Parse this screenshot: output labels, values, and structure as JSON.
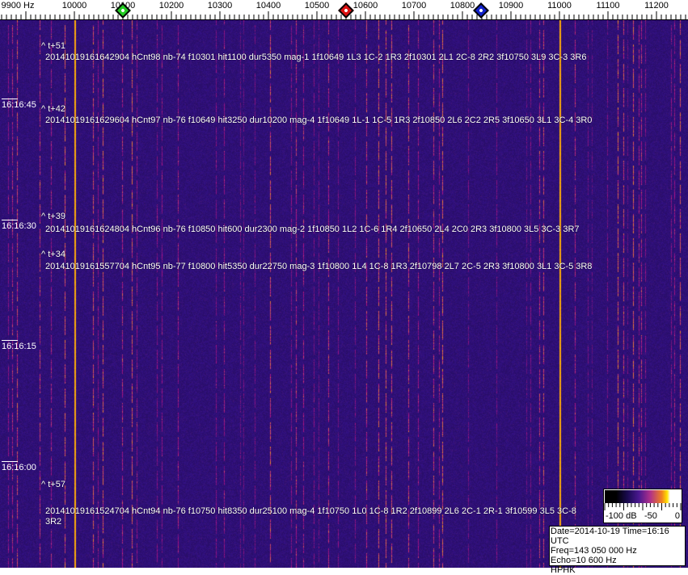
{
  "frequency_axis": {
    "unit": "Hz",
    "labels": [
      "9900 Hz",
      "10000",
      "10100",
      "10200",
      "10300",
      "10400",
      "10500",
      "10600",
      "10700",
      "10800",
      "10900",
      "11000",
      "11100",
      "11200"
    ],
    "values": [
      9900,
      10000,
      10100,
      10200,
      10300,
      10400,
      10500,
      10600,
      10700,
      10800,
      10900,
      11000,
      11100,
      11200
    ],
    "markers": [
      {
        "name": "green-marker",
        "freq": 10100,
        "color": "#22cc22"
      },
      {
        "name": "red-marker",
        "freq": 10560,
        "color": "#dd1111"
      },
      {
        "name": "blue-marker",
        "freq": 10838,
        "color": "#1122cc"
      }
    ]
  },
  "time_labels": [
    "16:16:45",
    "16:16:30",
    "16:16:15",
    "16:16:00"
  ],
  "detections": [
    {
      "offset": "^ t+51",
      "record": "20141019161642904 hCnt98 nb-74 f10301 hit1100 dur5350 mag-1 1f10649 1L3 1C-2 1R3 2f10301 2L1 2C-8 2R2 3f10750 3L9 3C-3 3R6"
    },
    {
      "offset": "^ t+42",
      "record": "20141019161629604 hCnt97 nb-76 f10649 hit3250 dur10200 mag-4 1f10649 1L-1 1C-5 1R3 2f10850 2L6 2C2 2R5 3f10650 3L1 3C-4 3R0"
    },
    {
      "offset": "^ t+39",
      "record": "20141019161624804 hCnt96 nb-76 f10850 hit600 dur2300 mag-2 1f10850 1L2 1C-6 1R4 2f10650 2L4 2C0 2R3 3f10800 3L5 3C-3 3R7"
    },
    {
      "offset": "^ t+34",
      "record": "20141019161557704 hCnt95 nb-77 f10800 hit5350 dur22750 mag-3 1f10800 1L4 1C-8 1R3 2f10798 2L7 2C-5 2R3 3f10800 3L1 3C-5 3R8"
    },
    {
      "offset": "^ t+57",
      "record": "20141019161524704 hCnt94 nb-76 f10750 hit8350 dur25100 mag-4 1f10750 1L0 1C-8 1R2 2f10899 2L6 2C-1 2R-1 3f10599 3L5 3C-8 3R2"
    }
  ],
  "colorbar": {
    "label_min": "-100 dB",
    "label_mid": "-50",
    "label_max": "0"
  },
  "info": {
    "line1": "Date=2014-10-19 Time=16:16 UTC",
    "line2": "Freq=143 050 000 Hz",
    "line3": "Echo=10 600 Hz",
    "line4": "HPHK"
  },
  "strong_carriers_hz": [
    10000,
    11000
  ]
}
